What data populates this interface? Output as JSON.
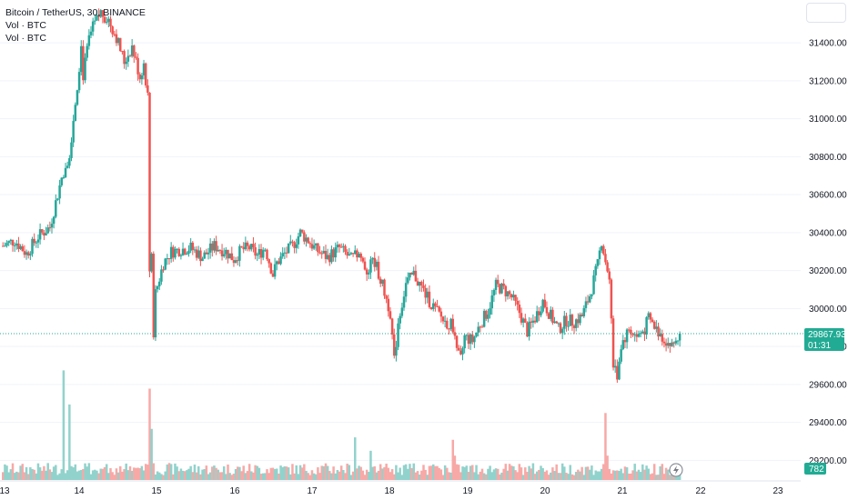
{
  "legend": {
    "symbol_line": "Bitcoin / TetherUS, 30, BINANCE",
    "indicator_1": "Vol · BTC",
    "indicator_2": "Vol · BTC"
  },
  "colors": {
    "up": "#26a69a",
    "down": "#ef5350",
    "up_volume": "#92d2cc",
    "down_volume": "#f7a9a7",
    "last_price_tag": "#22ab94",
    "grid": "#f0f3fa"
  },
  "icons": {
    "corner_button": "settings-panel-button",
    "bottom_badge": "lightning-icon"
  },
  "chart_data": {
    "type": "candlestick",
    "symbol": "BTCUSDT",
    "timeframe": "30",
    "exchange": "BINANCE",
    "ylim": [
      29000,
      31700
    ],
    "y_ticks": [
      29200,
      29400,
      29600,
      29800,
      30000,
      30200,
      30400,
      30600,
      30800,
      31000,
      31200,
      31400
    ],
    "y_tick_labels": [
      "29200.00",
      "29400.00",
      "29600.00",
      "29800.00",
      "30000.00",
      "30200.00",
      "30400.00",
      "30600.00",
      "30800.00",
      "31000.00",
      "31200.00",
      "31400.00"
    ],
    "x_ticks": [
      "13",
      "14",
      "15",
      "16",
      "17",
      "18",
      "19",
      "20",
      "21",
      "22",
      "23"
    ],
    "last_price": 29867.93,
    "last_price_label": "29867.93",
    "countdown": "01:31",
    "volume_label": "782",
    "price_path": [
      [
        0,
        30330
      ],
      [
        6,
        30360
      ],
      [
        12,
        30290
      ],
      [
        18,
        30380
      ],
      [
        24,
        30430
      ],
      [
        30,
        30690
      ],
      [
        34,
        30820
      ],
      [
        38,
        31180
      ],
      [
        40,
        31380
      ],
      [
        41,
        31230
      ],
      [
        44,
        31420
      ],
      [
        46,
        31480
      ],
      [
        50,
        31560
      ],
      [
        54,
        31520
      ],
      [
        58,
        31430
      ],
      [
        62,
        31300
      ],
      [
        66,
        31380
      ],
      [
        70,
        31220
      ],
      [
        72,
        31290
      ],
      [
        74,
        31120
      ],
      [
        75,
        30200
      ],
      [
        76,
        30300
      ],
      [
        77,
        29880
      ],
      [
        78,
        30080
      ],
      [
        80,
        30160
      ],
      [
        82,
        30240
      ],
      [
        86,
        30300
      ],
      [
        90,
        30310
      ],
      [
        96,
        30320
      ],
      [
        102,
        30270
      ],
      [
        108,
        30330
      ],
      [
        114,
        30300
      ],
      [
        118,
        30260
      ],
      [
        122,
        30310
      ],
      [
        126,
        30320
      ],
      [
        130,
        30280
      ],
      [
        134,
        30320
      ],
      [
        138,
        30180
      ],
      [
        140,
        30240
      ],
      [
        144,
        30290
      ],
      [
        148,
        30330
      ],
      [
        152,
        30400
      ],
      [
        156,
        30360
      ],
      [
        160,
        30310
      ],
      [
        166,
        30270
      ],
      [
        172,
        30320
      ],
      [
        178,
        30260
      ],
      [
        182,
        30290
      ],
      [
        186,
        30200
      ],
      [
        190,
        30250
      ],
      [
        194,
        30120
      ],
      [
        198,
        29980
      ],
      [
        200,
        29720
      ],
      [
        202,
        29930
      ],
      [
        206,
        30130
      ],
      [
        210,
        30180
      ],
      [
        214,
        30110
      ],
      [
        218,
        30040
      ],
      [
        222,
        29980
      ],
      [
        226,
        29930
      ],
      [
        230,
        29910
      ],
      [
        232,
        29760
      ],
      [
        234,
        29730
      ],
      [
        236,
        29850
      ],
      [
        240,
        29830
      ],
      [
        244,
        29920
      ],
      [
        248,
        29990
      ],
      [
        252,
        30120
      ],
      [
        256,
        30100
      ],
      [
        260,
        30060
      ],
      [
        264,
        29980
      ],
      [
        268,
        29880
      ],
      [
        272,
        29950
      ],
      [
        276,
        30040
      ],
      [
        280,
        29960
      ],
      [
        284,
        29890
      ],
      [
        288,
        29940
      ],
      [
        292,
        29930
      ],
      [
        296,
        29960
      ],
      [
        300,
        30070
      ],
      [
        304,
        30230
      ],
      [
        306,
        30360
      ],
      [
        308,
        30250
      ],
      [
        310,
        30180
      ],
      [
        312,
        29700
      ],
      [
        314,
        29650
      ],
      [
        316,
        29810
      ],
      [
        320,
        29890
      ],
      [
        324,
        29850
      ],
      [
        328,
        29890
      ],
      [
        330,
        29950
      ],
      [
        334,
        29890
      ],
      [
        338,
        29840
      ],
      [
        342,
        29800
      ],
      [
        346,
        29868
      ]
    ],
    "volume_spikes": [
      [
        31,
        0.9
      ],
      [
        34,
        0.62
      ],
      [
        75,
        0.75
      ],
      [
        76,
        0.42
      ],
      [
        180,
        0.35
      ],
      [
        188,
        0.24
      ],
      [
        230,
        0.33
      ],
      [
        231,
        0.2
      ],
      [
        308,
        0.55
      ],
      [
        309,
        0.2
      ]
    ]
  }
}
